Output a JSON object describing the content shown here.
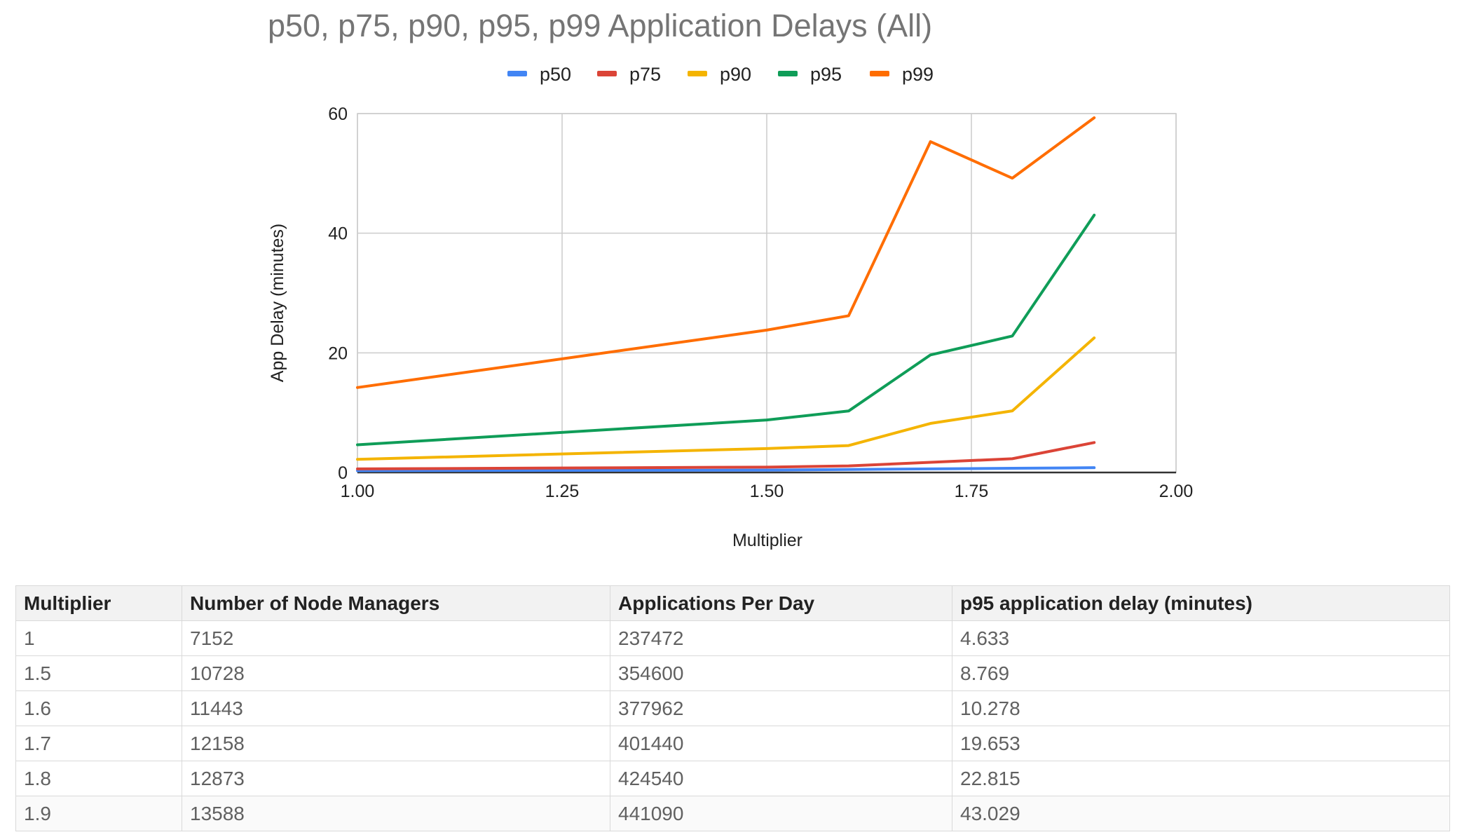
{
  "chart_data": {
    "type": "line",
    "title": "p50, p75, p90, p95, p99 Application Delays (All)",
    "xlabel": "Multiplier",
    "ylabel": "App Delay (minutes)",
    "xlim": [
      1.0,
      2.0
    ],
    "ylim": [
      0,
      60
    ],
    "x_ticks": [
      "1.00",
      "1.25",
      "1.50",
      "1.75",
      "2.00"
    ],
    "y_ticks": [
      "0",
      "20",
      "40",
      "60"
    ],
    "grid": true,
    "legend_position": "top",
    "x": [
      1.0,
      1.5,
      1.6,
      1.7,
      1.8,
      1.9
    ],
    "series": [
      {
        "name": "p50",
        "color": "#4285f4",
        "values": [
          0.3,
          0.4,
          0.5,
          0.6,
          0.7,
          0.8
        ]
      },
      {
        "name": "p75",
        "color": "#db4437",
        "values": [
          0.6,
          0.9,
          1.1,
          1.7,
          2.3,
          5.0
        ]
      },
      {
        "name": "p90",
        "color": "#f4b400",
        "values": [
          2.2,
          4.0,
          4.5,
          8.2,
          10.3,
          22.5
        ]
      },
      {
        "name": "p95",
        "color": "#0f9d58",
        "values": [
          4.633,
          8.769,
          10.278,
          19.653,
          22.815,
          43.029
        ]
      },
      {
        "name": "p99",
        "color": "#ff6d00",
        "values": [
          14.2,
          23.8,
          26.2,
          55.3,
          49.2,
          59.3
        ]
      }
    ]
  },
  "table": {
    "headers": [
      "Multiplier",
      "Number of Node Managers",
      "Applications Per Day",
      "p95 application delay (minutes)"
    ],
    "rows": [
      [
        "1",
        "7152",
        "237472",
        "4.633"
      ],
      [
        "1.5",
        "10728",
        "354600",
        "8.769"
      ],
      [
        "1.6",
        "11443",
        "377962",
        "10.278"
      ],
      [
        "1.7",
        "12158",
        "401440",
        "19.653"
      ],
      [
        "1.8",
        "12873",
        "424540",
        "22.815"
      ],
      [
        "1.9",
        "13588",
        "441090",
        "43.029"
      ]
    ]
  }
}
